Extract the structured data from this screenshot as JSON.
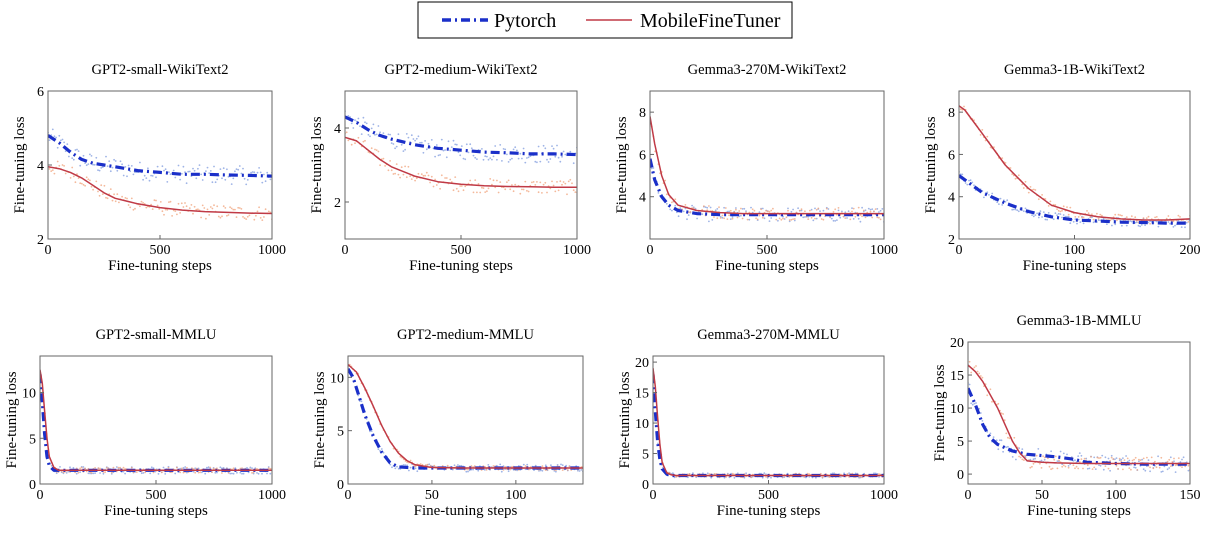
{
  "legend": {
    "entries": [
      {
        "name": "Pytorch",
        "color": "#1a2fc9",
        "style": "dashdot"
      },
      {
        "name": "MobileFineTuner",
        "color": "#c03a46",
        "style": "solid"
      }
    ]
  },
  "scatter_colors": {
    "Pytorch": "#7f9bde",
    "MobileFineTuner": "#f0a27a"
  },
  "chart_data": [
    {
      "type": "line",
      "title": "GPT2-small-WikiText2",
      "xlabel": "Fine-tuning steps",
      "ylabel": "Fine-tuning loss",
      "xlim": [
        0,
        1000
      ],
      "ylim": [
        2,
        6
      ],
      "xticks": [
        0,
        500,
        1000
      ],
      "yticks": [
        2,
        4,
        6
      ],
      "series": [
        {
          "name": "Pytorch",
          "x": [
            0,
            50,
            100,
            150,
            200,
            250,
            300,
            400,
            500,
            600,
            700,
            800,
            900,
            1000
          ],
          "y": [
            4.8,
            4.6,
            4.35,
            4.15,
            4.05,
            4.0,
            3.95,
            3.85,
            3.8,
            3.75,
            3.75,
            3.73,
            3.72,
            3.7
          ],
          "noise": 0.25
        },
        {
          "name": "MobileFineTuner",
          "x": [
            0,
            50,
            100,
            150,
            200,
            250,
            300,
            400,
            500,
            600,
            700,
            800,
            900,
            1000
          ],
          "y": [
            3.95,
            3.9,
            3.8,
            3.65,
            3.45,
            3.25,
            3.1,
            2.95,
            2.85,
            2.78,
            2.74,
            2.72,
            2.7,
            2.69
          ],
          "noise": 0.2
        }
      ]
    },
    {
      "type": "line",
      "title": "GPT2-medium-WikiText2",
      "xlabel": "Fine-tuning steps",
      "ylabel": "Fine-tuning loss",
      "xlim": [
        0,
        1000
      ],
      "ylim": [
        1.0,
        5.0
      ],
      "xticks": [
        0,
        500,
        1000
      ],
      "yticks": [
        2,
        4
      ],
      "series": [
        {
          "name": "Pytorch",
          "x": [
            0,
            50,
            100,
            150,
            200,
            300,
            400,
            500,
            600,
            700,
            800,
            900,
            1000
          ],
          "y": [
            4.3,
            4.15,
            3.95,
            3.8,
            3.7,
            3.55,
            3.45,
            3.4,
            3.35,
            3.33,
            3.3,
            3.3,
            3.28
          ],
          "noise": 0.25
        },
        {
          "name": "MobileFineTuner",
          "x": [
            0,
            50,
            100,
            150,
            200,
            300,
            400,
            500,
            600,
            700,
            800,
            900,
            1000
          ],
          "y": [
            3.75,
            3.65,
            3.4,
            3.15,
            2.95,
            2.7,
            2.55,
            2.48,
            2.44,
            2.42,
            2.41,
            2.4,
            2.4
          ],
          "noise": 0.2
        }
      ]
    },
    {
      "type": "line",
      "title": "Gemma3-270M-WikiText2",
      "xlabel": "Fine-tuning steps",
      "ylabel": "Fine-tuning loss",
      "xlim": [
        0,
        1000
      ],
      "ylim": [
        2.0,
        9.0
      ],
      "xticks": [
        0,
        500,
        1000
      ],
      "yticks": [
        4,
        6,
        8
      ],
      "series": [
        {
          "name": "Pytorch",
          "x": [
            0,
            20,
            50,
            80,
            120,
            200,
            300,
            400,
            500,
            600,
            700,
            800,
            900,
            1000
          ],
          "y": [
            5.8,
            4.8,
            4.0,
            3.6,
            3.35,
            3.2,
            3.15,
            3.15,
            3.15,
            3.15,
            3.15,
            3.15,
            3.15,
            3.15
          ],
          "noise": 0.35
        },
        {
          "name": "MobileFineTuner",
          "x": [
            0,
            20,
            50,
            80,
            120,
            200,
            300,
            400,
            500,
            600,
            700,
            800,
            900,
            1000
          ],
          "y": [
            7.8,
            6.5,
            5.0,
            4.1,
            3.6,
            3.35,
            3.25,
            3.2,
            3.2,
            3.2,
            3.2,
            3.2,
            3.2,
            3.2
          ],
          "noise": 0.3
        }
      ]
    },
    {
      "type": "line",
      "title": "Gemma3-1B-WikiText2",
      "xlabel": "Fine-tuning steps",
      "ylabel": "Fine-tuning loss",
      "xlim": [
        0,
        200
      ],
      "ylim": [
        2.0,
        9.0
      ],
      "xticks": [
        0,
        100,
        200
      ],
      "yticks": [
        2,
        4,
        6,
        8
      ],
      "series": [
        {
          "name": "Pytorch",
          "x": [
            0,
            5,
            20,
            40,
            60,
            80,
            100,
            120,
            140,
            160,
            180,
            200
          ],
          "y": [
            5.0,
            4.8,
            4.2,
            3.7,
            3.3,
            3.05,
            2.9,
            2.85,
            2.8,
            2.78,
            2.75,
            2.75
          ],
          "noise": 0.2
        },
        {
          "name": "MobileFineTuner",
          "x": [
            0,
            5,
            20,
            40,
            60,
            80,
            100,
            120,
            140,
            160,
            180,
            200
          ],
          "y": [
            8.3,
            8.1,
            7.0,
            5.5,
            4.4,
            3.6,
            3.25,
            3.05,
            2.95,
            2.9,
            2.9,
            2.95
          ],
          "noise": 0.2
        }
      ]
    },
    {
      "type": "line",
      "title": "GPT2-small-MMLU",
      "xlabel": "Fine-tuning steps",
      "ylabel": "Fine-tuning loss",
      "xlim": [
        0,
        1000
      ],
      "ylim": [
        0,
        14
      ],
      "xticks": [
        0,
        500,
        1000
      ],
      "yticks": [
        0,
        5,
        10
      ],
      "series": [
        {
          "name": "Pytorch",
          "x": [
            0,
            10,
            20,
            30,
            40,
            60,
            80,
            100,
            200,
            400,
            600,
            800,
            1000
          ],
          "y": [
            12.0,
            9.0,
            5.5,
            3.0,
            2.0,
            1.5,
            1.5,
            1.5,
            1.5,
            1.5,
            1.5,
            1.5,
            1.5
          ],
          "noise": 0.4
        },
        {
          "name": "MobileFineTuner",
          "x": [
            0,
            10,
            20,
            30,
            40,
            60,
            80,
            100,
            200,
            400,
            600,
            800,
            1000
          ],
          "y": [
            12.5,
            11.0,
            8.0,
            5.0,
            3.0,
            1.8,
            1.5,
            1.5,
            1.5,
            1.5,
            1.5,
            1.5,
            1.5
          ],
          "noise": 0.3
        }
      ]
    },
    {
      "type": "line",
      "title": "GPT2-medium-MMLU",
      "xlabel": "Fine-tuning steps",
      "ylabel": "Fine-tuning loss",
      "xlim": [
        0,
        140
      ],
      "ylim": [
        0,
        12
      ],
      "xticks": [
        0,
        50,
        100
      ],
      "yticks": [
        0,
        5,
        10
      ],
      "series": [
        {
          "name": "Pytorch",
          "x": [
            0,
            3,
            6,
            10,
            15,
            20,
            25,
            30,
            40,
            50,
            70,
            100,
            140
          ],
          "y": [
            10.8,
            10.0,
            8.5,
            6.5,
            4.5,
            3.0,
            2.0,
            1.6,
            1.5,
            1.5,
            1.5,
            1.5,
            1.5
          ],
          "noise": 0.35
        },
        {
          "name": "MobileFineTuner",
          "x": [
            0,
            5,
            10,
            15,
            20,
            25,
            30,
            35,
            40,
            50,
            70,
            100,
            140
          ],
          "y": [
            11.2,
            10.5,
            9.0,
            7.3,
            5.5,
            4.0,
            2.9,
            2.2,
            1.8,
            1.55,
            1.5,
            1.5,
            1.5
          ],
          "noise": 0.2
        }
      ]
    },
    {
      "type": "line",
      "title": "Gemma3-270M-MMLU",
      "xlabel": "Fine-tuning steps",
      "ylabel": "Fine-tuning loss",
      "xlim": [
        0,
        1000
      ],
      "ylim": [
        0,
        21
      ],
      "xticks": [
        0,
        500,
        1000
      ],
      "yticks": [
        0,
        5,
        10,
        15,
        20
      ],
      "series": [
        {
          "name": "Pytorch",
          "x": [
            0,
            10,
            20,
            30,
            40,
            60,
            80,
            100,
            200,
            400,
            600,
            800,
            1000
          ],
          "y": [
            18.0,
            12.0,
            7.0,
            4.0,
            2.5,
            1.6,
            1.4,
            1.4,
            1.4,
            1.4,
            1.4,
            1.4,
            1.4
          ],
          "noise": 0.4
        },
        {
          "name": "MobileFineTuner",
          "x": [
            0,
            10,
            20,
            30,
            40,
            60,
            80,
            100,
            200,
            400,
            600,
            800,
            1000
          ],
          "y": [
            19.0,
            16.0,
            11.0,
            6.5,
            3.5,
            1.8,
            1.5,
            1.4,
            1.4,
            1.4,
            1.4,
            1.4,
            1.4
          ],
          "noise": 0.3
        }
      ]
    },
    {
      "type": "line",
      "title": "Gemma3-1B-MMLU",
      "xlabel": "Fine-tuning steps",
      "ylabel": "Fine-tuning loss",
      "xlim": [
        0,
        150
      ],
      "ylim": [
        -1.5,
        20
      ],
      "xticks": [
        0,
        50,
        100,
        150
      ],
      "yticks": [
        0,
        5,
        10,
        15,
        20
      ],
      "series": [
        {
          "name": "Pytorch",
          "x": [
            0,
            5,
            10,
            15,
            20,
            30,
            40,
            50,
            60,
            70,
            80,
            100,
            120,
            150
          ],
          "y": [
            13.0,
            10.5,
            7.5,
            5.5,
            4.5,
            3.5,
            3.0,
            2.8,
            2.6,
            2.3,
            1.8,
            1.6,
            1.5,
            1.5
          ],
          "noise": 1.2
        },
        {
          "name": "MobileFineTuner",
          "x": [
            0,
            5,
            10,
            15,
            20,
            25,
            30,
            35,
            40,
            50,
            60,
            80,
            100,
            120,
            150
          ],
          "y": [
            16.5,
            15.5,
            14.0,
            12.0,
            10.0,
            7.5,
            5.0,
            3.2,
            2.0,
            1.8,
            1.7,
            1.6,
            1.6,
            1.6,
            1.6
          ],
          "noise": 1.0
        }
      ]
    }
  ]
}
